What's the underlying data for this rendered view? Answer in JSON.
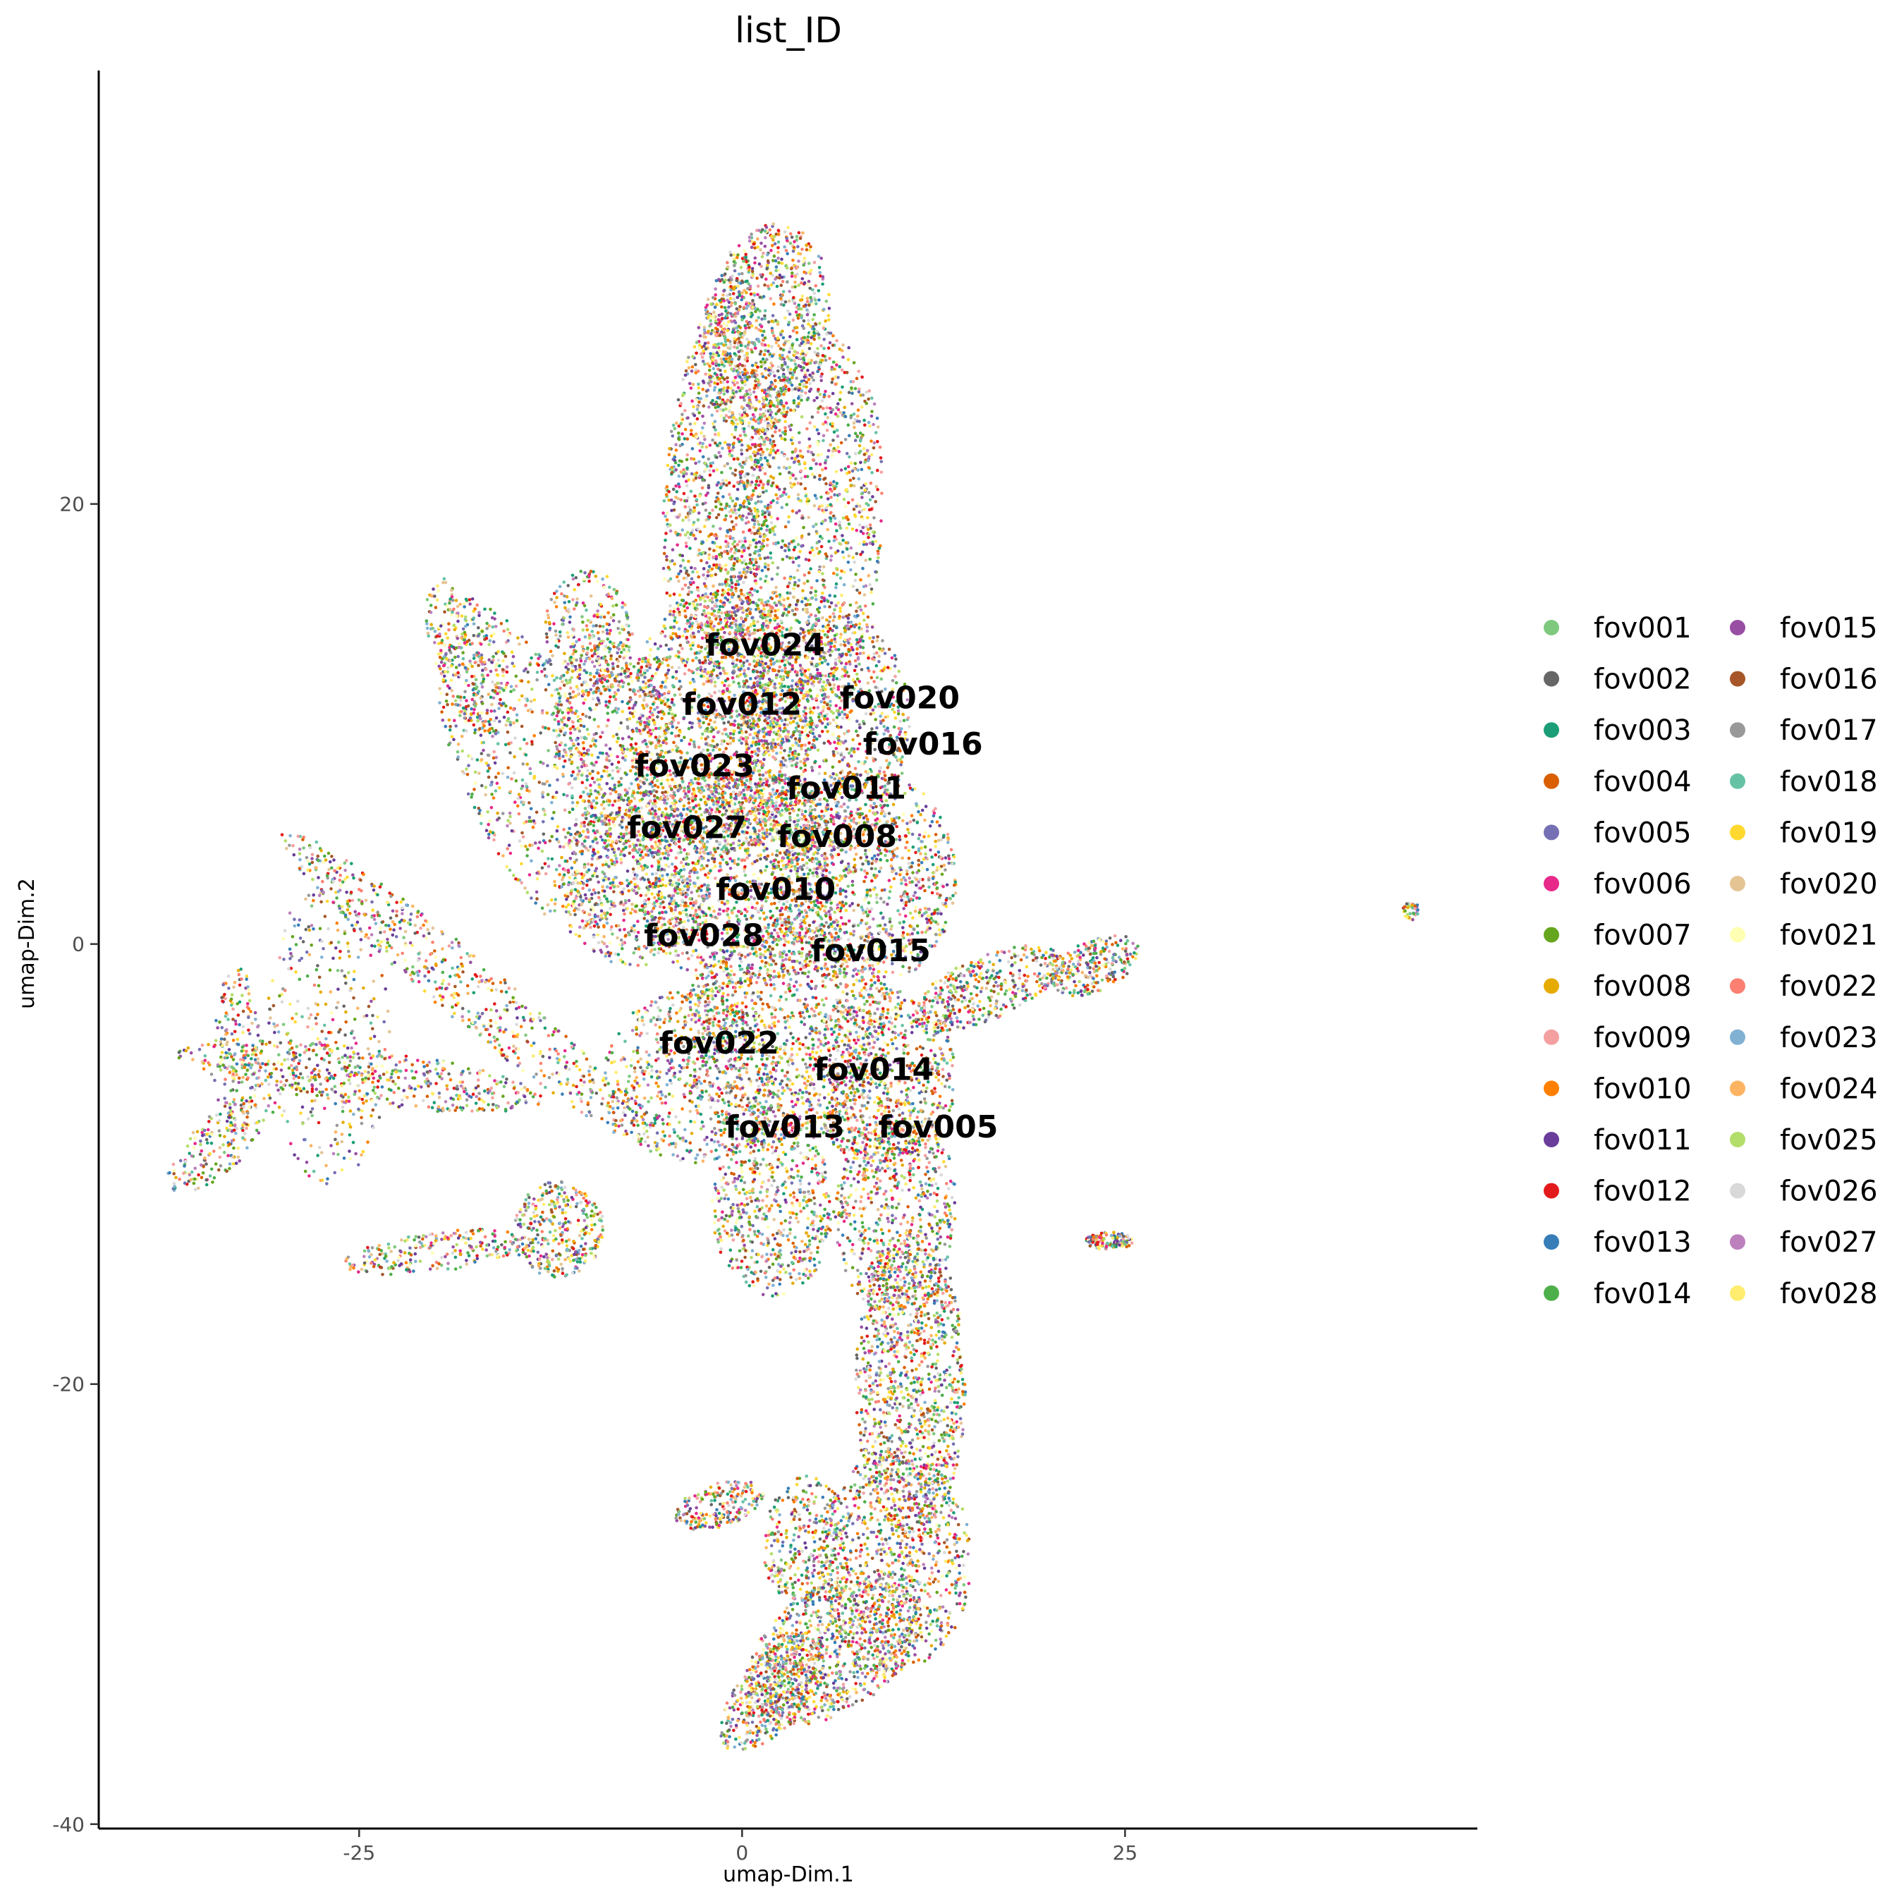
{
  "chart_data": {
    "type": "scatter",
    "title": "list_ID",
    "xlabel": "umap-Dim.1",
    "ylabel": "umap-Dim.2",
    "xlim": [
      -42,
      48
    ],
    "ylim": [
      -40.2,
      39.7
    ],
    "x_ticks": [
      {
        "value": -25,
        "label": "-25"
      },
      {
        "value": 0,
        "label": "0"
      },
      {
        "value": 25,
        "label": "25"
      }
    ],
    "y_ticks": [
      {
        "value": 20,
        "label": "20"
      },
      {
        "value": 0,
        "label": "0"
      },
      {
        "value": -20,
        "label": "-20"
      },
      {
        "value": -40,
        "label": "-40"
      }
    ],
    "legend_position": "right",
    "series": [
      {
        "name": "fov001",
        "color": "#7fc97f"
      },
      {
        "name": "fov002",
        "color": "#666666"
      },
      {
        "name": "fov003",
        "color": "#1b9e77"
      },
      {
        "name": "fov004",
        "color": "#d95f02"
      },
      {
        "name": "fov005",
        "color": "#7570b3"
      },
      {
        "name": "fov006",
        "color": "#e7298a"
      },
      {
        "name": "fov007",
        "color": "#66a61e"
      },
      {
        "name": "fov008",
        "color": "#e6ab02"
      },
      {
        "name": "fov009",
        "color": "#f4a0a0"
      },
      {
        "name": "fov010",
        "color": "#ff7f00"
      },
      {
        "name": "fov011",
        "color": "#6a3d9a"
      },
      {
        "name": "fov012",
        "color": "#e31a1c"
      },
      {
        "name": "fov013",
        "color": "#377eb8"
      },
      {
        "name": "fov014",
        "color": "#4daf4a"
      },
      {
        "name": "fov015",
        "color": "#984ea3"
      },
      {
        "name": "fov016",
        "color": "#a65628"
      },
      {
        "name": "fov017",
        "color": "#999999"
      },
      {
        "name": "fov018",
        "color": "#66c2a5"
      },
      {
        "name": "fov019",
        "color": "#ffd92f"
      },
      {
        "name": "fov020",
        "color": "#e5c494"
      },
      {
        "name": "fov021",
        "color": "#ffffb3"
      },
      {
        "name": "fov022",
        "color": "#fb8072"
      },
      {
        "name": "fov023",
        "color": "#80b1d3"
      },
      {
        "name": "fov024",
        "color": "#fdb462"
      },
      {
        "name": "fov025",
        "color": "#b3de69"
      },
      {
        "name": "fov026",
        "color": "#d9d9d9"
      },
      {
        "name": "fov027",
        "color": "#bc80bd"
      },
      {
        "name": "fov028",
        "color": "#ffed6f"
      }
    ],
    "cluster_labels": [
      {
        "text": "fov024",
        "x": 1.5,
        "y": 13.5
      },
      {
        "text": "fov012",
        "x": 0.0,
        "y": 10.8
      },
      {
        "text": "fov020",
        "x": 10.3,
        "y": 11.1
      },
      {
        "text": "fov016",
        "x": 11.8,
        "y": 9.0
      },
      {
        "text": "fov023",
        "x": -3.1,
        "y": 8.0
      },
      {
        "text": "fov011",
        "x": 6.8,
        "y": 7.0
      },
      {
        "text": "fov027",
        "x": -3.6,
        "y": 5.2
      },
      {
        "text": "fov008",
        "x": 6.2,
        "y": 4.8
      },
      {
        "text": "fov010",
        "x": 2.2,
        "y": 2.4
      },
      {
        "text": "fov028",
        "x": -2.5,
        "y": 0.3
      },
      {
        "text": "fov015",
        "x": 8.4,
        "y": -0.4
      },
      {
        "text": "fov022",
        "x": -1.5,
        "y": -4.6
      },
      {
        "text": "fov014",
        "x": 8.6,
        "y": -5.8
      },
      {
        "text": "fov013",
        "x": 2.8,
        "y": -8.4
      },
      {
        "text": "fov005",
        "x": 12.8,
        "y": -8.4
      }
    ]
  }
}
